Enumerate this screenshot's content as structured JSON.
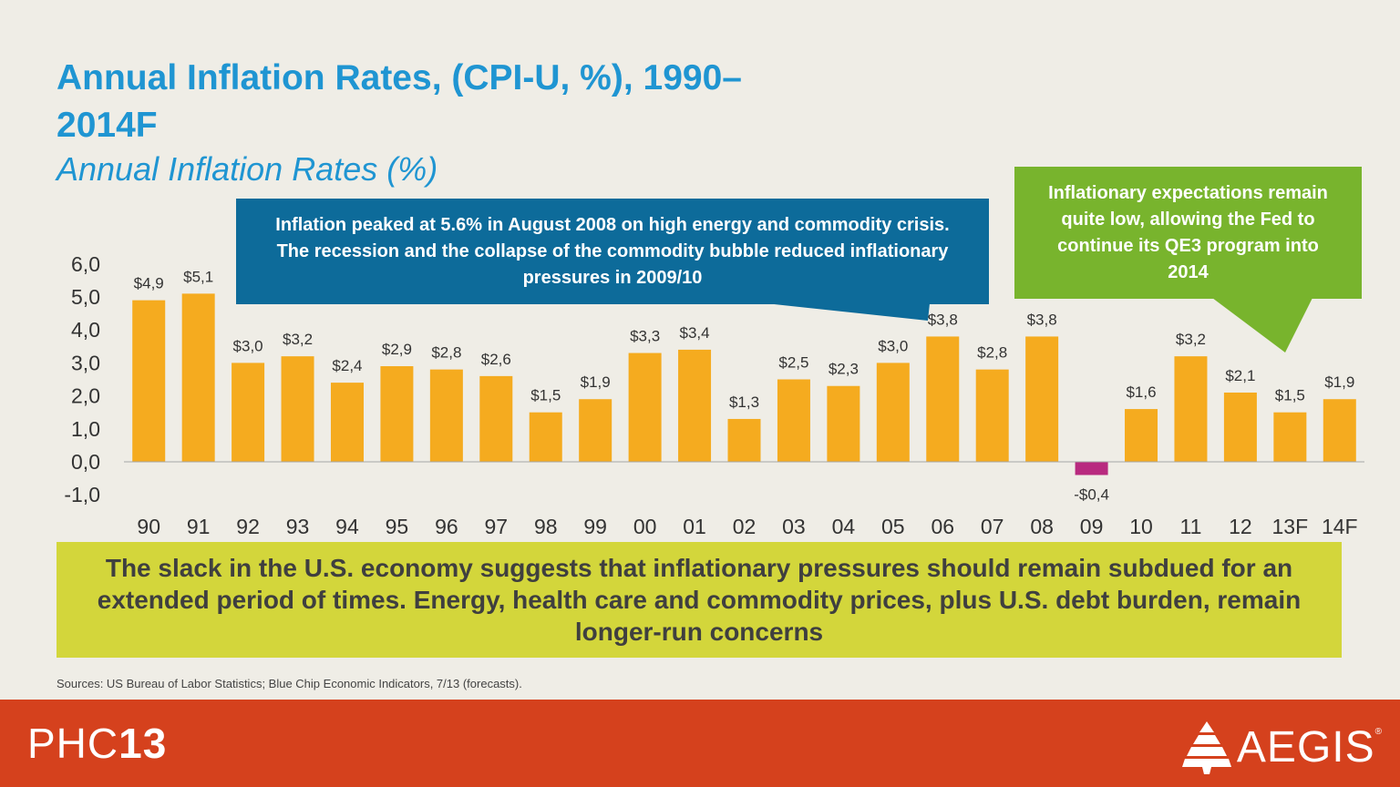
{
  "slide": {
    "title": "Annual Inflation Rates, (CPI-U, %), 1990–2014F",
    "subtitle": "Annual Inflation Rates (%)",
    "callout_blue": "Inflation peaked at 5.6% in August 2008 on high energy and commodity crisis. The recession and the collapse of the commodity bubble reduced inflationary pressures in 2009/10",
    "callout_green": "Inflationary expectations remain quite low, allowing the Fed to continue its QE3 program into 2014",
    "bottom_note": "The slack in the U.S. economy suggests that inflationary pressures should remain subdued for an extended period of times.  Energy, health care and commodity prices, plus U.S. debt burden, remain longer-run concerns",
    "sources": "Sources: US Bureau of Labor Statistics; Blue Chip Economic Indicators, 7/13 (forecasts)."
  },
  "footer": {
    "left_thin": "PHC",
    "left_bold": "13",
    "right_logo": "AEGIS",
    "right_reg": "®"
  },
  "colors": {
    "title": "#1f95d2",
    "bar_positive": "#f5ab1f",
    "bar_negative": "#b82a7f",
    "callout_blue": "#0d6b9a",
    "callout_green": "#78b42d",
    "note_bg": "#d3d63b",
    "footer": "#d5411d"
  },
  "chart_data": {
    "type": "bar",
    "categories": [
      "90",
      "91",
      "92",
      "93",
      "94",
      "95",
      "96",
      "97",
      "98",
      "99",
      "00",
      "01",
      "02",
      "03",
      "04",
      "05",
      "06",
      "07",
      "08",
      "09",
      "10",
      "11",
      "12",
      "13F",
      "14F"
    ],
    "values": [
      4.9,
      5.1,
      3.0,
      3.2,
      2.4,
      2.9,
      2.8,
      2.6,
      1.5,
      1.9,
      3.3,
      3.4,
      1.3,
      2.5,
      2.3,
      3.0,
      3.8,
      2.8,
      3.8,
      -0.4,
      1.6,
      3.2,
      2.1,
      1.5,
      1.9
    ],
    "data_labels": [
      "$4,9",
      "$5,1",
      "$3,0",
      "$3,2",
      "$2,4",
      "$2,9",
      "$2,8",
      "$2,6",
      "$1,5",
      "$1,9",
      "$3,3",
      "$3,4",
      "$1,3",
      "$2,5",
      "$2,3",
      "$3,0",
      "$3,8",
      "$2,8",
      "$3,8",
      "-$0,4",
      "$1,6",
      "$3,2",
      "$2,1",
      "$1,5",
      "$1,9"
    ],
    "y_ticks": [
      "6,0",
      "5,0",
      "4,0",
      "3,0",
      "2,0",
      "1,0",
      "0,0",
      "-1,0"
    ],
    "y_tick_values": [
      6,
      5,
      4,
      3,
      2,
      1,
      0,
      -1
    ],
    "ylim": [
      -1,
      6
    ],
    "grid": false,
    "legend": "none"
  }
}
